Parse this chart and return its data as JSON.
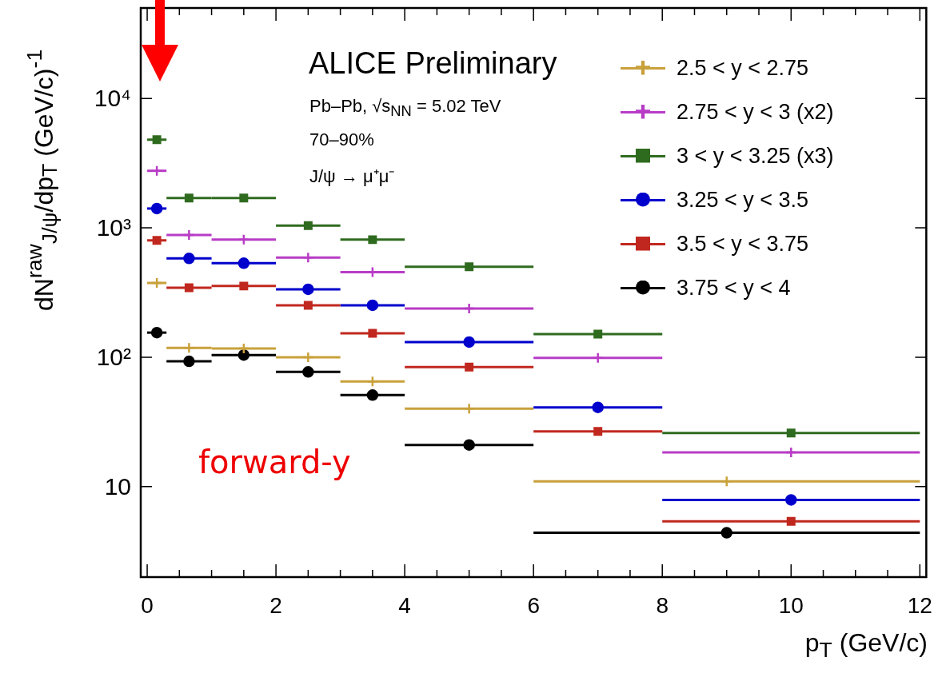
{
  "chart_data": {
    "type": "scatter",
    "xlabel": "p$_{T}$ (GeV/c)",
    "ylabel": "dN$^{raw}$$_{J/ψ}$/dp$_{T}$  (GeV/c)$^{-1}$",
    "log": "y",
    "grid": false,
    "legend": "top right",
    "line_style": "solid",
    "xlim": [
      -0.1,
      12.1
    ],
    "xticks": [
      0,
      {
        "value": 0.5,
        "label": null
      },
      {
        "value": 1,
        "label": null
      },
      {
        "value": 1.5,
        "label": null
      },
      2,
      {
        "value": 2.5,
        "label": null
      },
      {
        "value": 3,
        "label": null
      },
      {
        "value": 3.5,
        "label": null
      },
      4,
      {
        "value": 4.5,
        "label": null
      },
      {
        "value": 5,
        "label": null
      },
      {
        "value": 5.5,
        "label": null
      },
      6,
      {
        "value": 6.5,
        "label": null
      },
      {
        "value": 7,
        "label": null
      },
      {
        "value": 7.5,
        "label": null
      },
      8,
      {
        "value": 8.5,
        "label": null
      },
      {
        "value": 9,
        "label": null
      },
      {
        "value": 9.5,
        "label": null
      },
      10,
      {
        "value": 10.5,
        "label": null
      },
      {
        "value": 11,
        "label": null
      },
      {
        "value": 11.5,
        "label": null
      },
      12
    ],
    "ylim": [
      2,
      50000
    ],
    "yticks": [
      10,
      {
        "value": 100,
        "label": "10²"
      },
      {
        "value": 1000,
        "label": "10³"
      },
      {
        "value": 10000,
        "label": "10⁴"
      }
    ],
    "annotations": [
      "ALICE Preliminary",
      "Pb–Pb, √s$_{NN}$ = 5.02 TeV",
      "70–90%",
      "J/ψ → μ⁺μ⁻",
      "forward-y"
    ],
    "series": [
      {
        "name": "2.5 < y < 2.75",
        "color": "#c9a13b",
        "marker": "cross",
        "x": [
          0.15,
          0.65,
          1.5,
          2.5,
          3.5,
          5,
          9
        ],
        "values": [
          375,
          118,
          117,
          100,
          65,
          40,
          11
        ],
        "xerrors": [
          0.15,
          0.35,
          0.5,
          0.5,
          0.5,
          1,
          3
        ]
      },
      {
        "name": "2.75 < y < 3 (x2)",
        "color": "#b83cc6",
        "marker": "cross",
        "x": [
          0.15,
          0.65,
          1.5,
          2.5,
          3.5,
          5,
          7,
          10
        ],
        "values": [
          2760,
          880,
          810,
          590,
          455,
          238,
          99,
          18.4
        ],
        "xerrors": [
          0.15,
          0.35,
          0.5,
          0.5,
          0.5,
          1,
          1,
          2
        ]
      },
      {
        "name": "3 < y < 3.25 (x3)",
        "color": "#2f6b1f",
        "marker": "square",
        "x": [
          0.15,
          0.65,
          1.5,
          2.5,
          3.5,
          5,
          7,
          10
        ],
        "values": [
          4800,
          1700,
          1700,
          1040,
          810,
          500,
          151,
          26
        ],
        "xerrors": [
          0.15,
          0.35,
          0.5,
          0.5,
          0.5,
          1,
          1,
          2
        ]
      },
      {
        "name": "3.25 < y < 3.5",
        "color": "#0000cc",
        "marker": "circle",
        "x": [
          0.15,
          0.65,
          1.5,
          2.5,
          3.5,
          5,
          7,
          10
        ],
        "values": [
          1410,
          580,
          533,
          335,
          252,
          131,
          41,
          7.9
        ],
        "xerrors": [
          0.15,
          0.35,
          0.5,
          0.5,
          0.5,
          1,
          1,
          2
        ]
      },
      {
        "name": "3.5 < y < 3.75",
        "color": "#c0281f",
        "marker": "square",
        "x": [
          0.15,
          0.65,
          1.5,
          2.5,
          3.5,
          5,
          7,
          10
        ],
        "values": [
          800,
          344,
          355,
          252,
          153,
          84,
          26.7,
          5.4
        ],
        "xerrors": [
          0.15,
          0.35,
          0.5,
          0.5,
          0.5,
          1,
          1,
          2
        ]
      },
      {
        "name": "3.75 < y < 4",
        "color": "#000000",
        "marker": "circle",
        "x": [
          0.15,
          0.65,
          1.5,
          2.5,
          3.5,
          5,
          9
        ],
        "values": [
          155,
          93,
          104,
          77,
          51,
          21,
          4.4
        ],
        "xerrors": [
          0.15,
          0.35,
          0.5,
          0.5,
          0.5,
          1,
          3
        ]
      }
    ]
  }
}
